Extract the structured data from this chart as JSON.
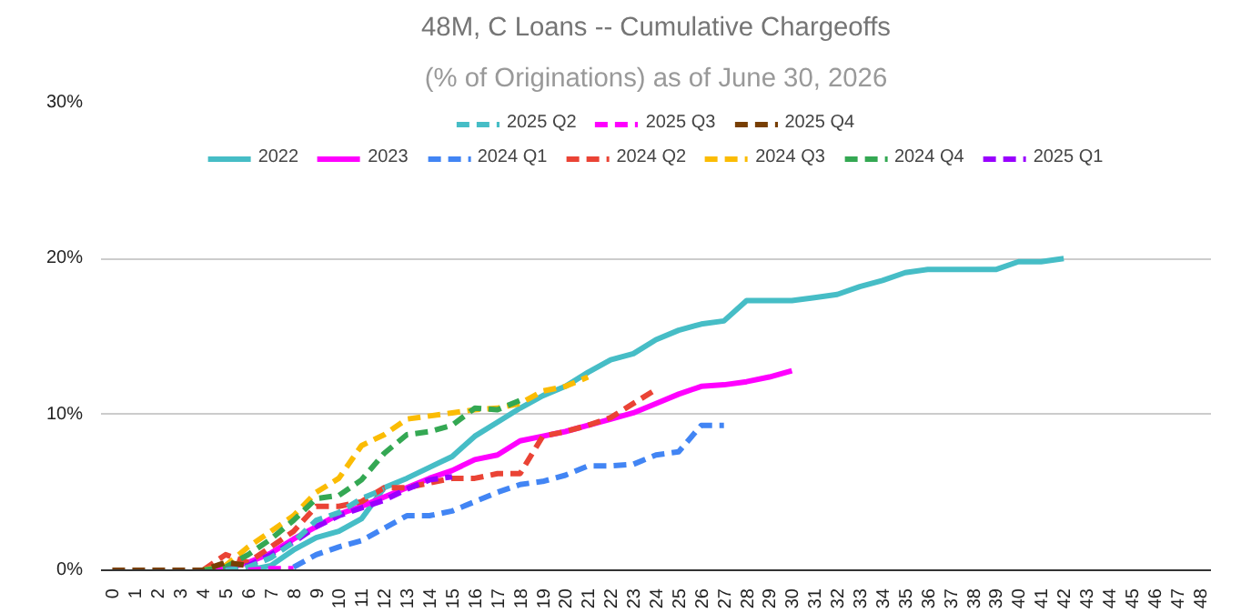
{
  "chart_data": {
    "type": "line",
    "title": "48M, C Loans -- Cumulative Chargeoffs",
    "subtitle": "(% of Originations) as of June 30, 2026",
    "categories": [
      "0",
      "1",
      "2",
      "3",
      "4",
      "5",
      "6",
      "7",
      "8",
      "9",
      "10",
      "11",
      "12",
      "13",
      "14",
      "15",
      "16",
      "17",
      "18",
      "19",
      "20",
      "21",
      "22",
      "23",
      "24",
      "25",
      "26",
      "27",
      "28",
      "29",
      "30",
      "31",
      "32",
      "33",
      "34",
      "35",
      "36",
      "37",
      "38",
      "39",
      "40",
      "41",
      "42",
      "43",
      "44",
      "45",
      "46",
      "47",
      "48"
    ],
    "ylim": [
      0,
      30
    ],
    "yticks": [
      {
        "value": 0,
        "label": "0%"
      },
      {
        "value": 10,
        "label": "10%"
      },
      {
        "value": 20,
        "label": "20%"
      },
      {
        "value": 30,
        "label": "30%"
      }
    ],
    "grid": "y",
    "legend": "top",
    "series": [
      {
        "name": "2022",
        "color": "#46bdc6",
        "line_style": "solid",
        "values": [
          null,
          null,
          null,
          null,
          null,
          null,
          0,
          0.3,
          1.3,
          2.1,
          2.5,
          3.3,
          5.3,
          5.9,
          6.6,
          7.3,
          8.6,
          9.5,
          10.4,
          11.2,
          11.8,
          12.7,
          13.5,
          13.9,
          14.8,
          15.4,
          15.8,
          16.0,
          17.3,
          17.3,
          17.3,
          17.5,
          17.7,
          18.2,
          18.6,
          19.1,
          19.3,
          19.3,
          19.3,
          19.3,
          19.8,
          19.8,
          20.0,
          null,
          null,
          null,
          null,
          null,
          null
        ]
      },
      {
        "name": "2023",
        "color": "#ff00ff",
        "line_style": "solid",
        "values": [
          null,
          null,
          null,
          null,
          0,
          0.1,
          0.5,
          1.1,
          2.0,
          2.8,
          3.6,
          4.1,
          4.7,
          5.3,
          5.9,
          6.4,
          7.1,
          7.4,
          8.3,
          8.6,
          8.9,
          9.3,
          9.7,
          10.1,
          10.7,
          11.3,
          11.8,
          11.9,
          12.1,
          12.4,
          12.8,
          null,
          null,
          null,
          null,
          null,
          null,
          null,
          null,
          null,
          null,
          null,
          null,
          null,
          null,
          null,
          null,
          null,
          null
        ]
      },
      {
        "name": "2024 Q1",
        "color": "#4285f4",
        "line_style": "dashed",
        "values": [
          null,
          null,
          null,
          null,
          null,
          null,
          null,
          null,
          0.2,
          1.0,
          1.5,
          1.9,
          2.7,
          3.5,
          3.5,
          3.8,
          4.4,
          5.0,
          5.5,
          5.7,
          6.1,
          6.7,
          6.7,
          6.8,
          7.4,
          7.6,
          9.3,
          9.3,
          null,
          null,
          null,
          null,
          null,
          null,
          null,
          null,
          null,
          null,
          null,
          null,
          null,
          null,
          null,
          null,
          null,
          null,
          null,
          null,
          null
        ]
      },
      {
        "name": "2024 Q2",
        "color": "#ea4335",
        "line_style": "dashed",
        "values": [
          null,
          null,
          null,
          null,
          0,
          1.0,
          0.5,
          1.5,
          2.5,
          4.1,
          4.1,
          4.4,
          5.3,
          5.3,
          5.6,
          5.9,
          5.9,
          6.2,
          6.2,
          8.6,
          8.9,
          9.3,
          9.8,
          10.7,
          11.6,
          null,
          null,
          null,
          null,
          null,
          null,
          null,
          null,
          null,
          null,
          null,
          null,
          null,
          null,
          null,
          null,
          null,
          null,
          null,
          null,
          null,
          null,
          null,
          null
        ]
      },
      {
        "name": "2024 Q3",
        "color": "#fbbc04",
        "line_style": "dashed",
        "values": [
          null,
          null,
          null,
          null,
          0,
          0.3,
          1.5,
          2.5,
          3.5,
          5.0,
          5.9,
          8.0,
          8.7,
          9.7,
          9.9,
          10.1,
          10.3,
          10.4,
          10.7,
          11.5,
          11.8,
          12.4,
          null,
          null,
          null,
          null,
          null,
          null,
          null,
          null,
          null,
          null,
          null,
          null,
          null,
          null,
          null,
          null,
          null,
          null,
          null,
          null,
          null,
          null,
          null,
          null,
          null,
          null,
          null
        ]
      },
      {
        "name": "2024 Q4",
        "color": "#34a853",
        "line_style": "dashed",
        "values": [
          null,
          null,
          null,
          null,
          0,
          0.2,
          1.0,
          2.0,
          3.2,
          4.6,
          4.8,
          5.8,
          7.5,
          8.7,
          8.9,
          9.3,
          10.4,
          10.3,
          10.9,
          null,
          null,
          null,
          null,
          null,
          null,
          null,
          null,
          null,
          null,
          null,
          null,
          null,
          null,
          null,
          null,
          null,
          null,
          null,
          null,
          null,
          null,
          null,
          null,
          null,
          null,
          null,
          null,
          null,
          null
        ]
      },
      {
        "name": "2025 Q1",
        "color": "#9900ff",
        "line_style": "dashed",
        "values": [
          null,
          null,
          null,
          null,
          null,
          0,
          0.3,
          1.0,
          1.8,
          2.8,
          3.5,
          4.0,
          4.5,
          5.2,
          5.8,
          6.0,
          null,
          null,
          null,
          null,
          null,
          null,
          null,
          null,
          null,
          null,
          null,
          null,
          null,
          null,
          null,
          null,
          null,
          null,
          null,
          null,
          null,
          null,
          null,
          null,
          null,
          null,
          null,
          null,
          null,
          null,
          null,
          null,
          null
        ]
      },
      {
        "name": "2025 Q2",
        "color": "#46bdc6",
        "line_style": "dashed",
        "values": [
          null,
          null,
          null,
          null,
          null,
          0,
          0.2,
          0.8,
          1.8,
          3.2,
          3.7,
          4.6,
          5.2,
          null,
          null,
          null,
          null,
          null,
          null,
          null,
          null,
          null,
          null,
          null,
          null,
          null,
          null,
          null,
          null,
          null,
          null,
          null,
          null,
          null,
          null,
          null,
          null,
          null,
          null,
          null,
          null,
          null,
          null,
          null,
          null,
          null,
          null,
          null,
          null
        ]
      },
      {
        "name": "2025 Q3",
        "color": "#ff00ff",
        "line_style": "dashed",
        "values": [
          null,
          null,
          null,
          null,
          null,
          null,
          0,
          0.1,
          0.1,
          null,
          null,
          null,
          null,
          null,
          null,
          null,
          null,
          null,
          null,
          null,
          null,
          null,
          null,
          null,
          null,
          null,
          null,
          null,
          null,
          null,
          null,
          null,
          null,
          null,
          null,
          null,
          null,
          null,
          null,
          null,
          null,
          null,
          null,
          null,
          null,
          null,
          null,
          null,
          null
        ]
      },
      {
        "name": "2025 Q4",
        "color": "#783f04",
        "line_style": "dashed",
        "values": [
          0,
          0,
          0,
          0,
          0,
          0.5,
          0.3,
          null,
          null,
          null,
          null,
          null,
          null,
          null,
          null,
          null,
          null,
          null,
          null,
          null,
          null,
          null,
          null,
          null,
          null,
          null,
          null,
          null,
          null,
          null,
          null,
          null,
          null,
          null,
          null,
          null,
          null,
          null,
          null,
          null,
          null,
          null,
          null,
          null,
          null,
          null,
          null,
          null,
          null
        ]
      }
    ]
  }
}
